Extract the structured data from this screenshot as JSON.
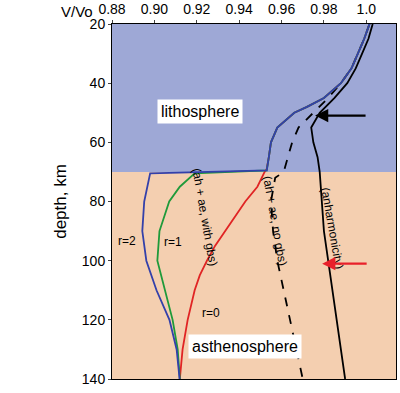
{
  "chart_data": {
    "type": "line",
    "x_label": "V/Vo",
    "y_label": "depth, km",
    "xlim": [
      0.88,
      1.014
    ],
    "ylim": [
      140,
      20
    ],
    "xticks": [
      0.88,
      {
        "value": 0.9,
        "label": "0.90"
      },
      0.92,
      0.94,
      0.96,
      0.98,
      {
        "value": 1,
        "label": "1.0"
      }
    ],
    "yticks": [
      20,
      40,
      60,
      80,
      100,
      120,
      140
    ],
    "grid": false,
    "legend": "none",
    "regions": [
      {
        "label": "lithosphere",
        "from": 20,
        "to": 70,
        "color": "#9ea8d6"
      },
      {
        "label": "asthenosphere",
        "from": 70,
        "to": 140,
        "color": "#f4cfb0"
      }
    ],
    "annotations": [
      "(ah + ae, with gbs)"
    ],
    "series": [
      {
        "name": "(anharmonicity)",
        "color": "#000000",
        "line_style": "solid",
        "y": [
          20,
          25,
          30,
          35,
          40,
          45,
          50,
          55,
          60,
          65,
          70,
          80,
          90,
          100,
          110,
          120,
          130,
          140
        ],
        "x": [
          1.003,
          1.001,
          0.998,
          0.995,
          0.991,
          0.985,
          0.978,
          0.974,
          0.975,
          0.977,
          0.978,
          0.979,
          0.98,
          0.982,
          0.984,
          0.986,
          0.988,
          0.99
        ]
      },
      {
        "name": "(ah + ae, no gbs)",
        "color": "#000000",
        "line_style": "dashed",
        "y": [
          20,
          25,
          30,
          35,
          40,
          45,
          50,
          55,
          60,
          65,
          70,
          72,
          80,
          90,
          100,
          110,
          120,
          130,
          140
        ],
        "x": [
          1.0015,
          0.999,
          0.996,
          0.993,
          0.988,
          0.982,
          0.975,
          0.968,
          0.965,
          0.963,
          0.961,
          0.957,
          0.955,
          0.956,
          0.958,
          0.961,
          0.964,
          0.967,
          0.97
        ]
      },
      {
        "name": "r=0",
        "color": "#e02424",
        "line_style": "solid",
        "y": [
          20,
          25,
          30,
          35,
          40,
          45,
          48,
          50,
          55,
          60,
          65,
          69,
          70,
          75,
          80,
          85,
          90,
          95,
          100,
          105,
          110,
          120,
          130,
          140
        ],
        "x": [
          1.0015,
          0.999,
          0.996,
          0.993,
          0.988,
          0.98,
          0.972,
          0.966,
          0.958,
          0.955,
          0.954,
          0.953,
          0.952,
          0.9486,
          0.9429,
          0.9381,
          0.9333,
          0.9286,
          0.9248,
          0.9214,
          0.919,
          0.9157,
          0.9133,
          0.912
        ]
      },
      {
        "name": "r=1",
        "color": "#1f9a3a",
        "line_style": "solid",
        "y": [
          20,
          25,
          30,
          35,
          40,
          45,
          48,
          50,
          55,
          60,
          65,
          69.5,
          70.5,
          75,
          80,
          85,
          90,
          100,
          110,
          120,
          130,
          140
        ],
        "x": [
          1.0015,
          0.999,
          0.996,
          0.993,
          0.988,
          0.98,
          0.972,
          0.966,
          0.958,
          0.955,
          0.954,
          0.953,
          0.919,
          0.912,
          0.907,
          0.9048,
          0.9024,
          0.9014,
          0.905,
          0.9086,
          0.911,
          0.912
        ]
      },
      {
        "name": "r=2",
        "color": "#3340aa",
        "line_style": "solid",
        "y": [
          20,
          25,
          30,
          35,
          40,
          45,
          48,
          50,
          55,
          60,
          65,
          69.5,
          70.5,
          72,
          80,
          90,
          100,
          110,
          120,
          130,
          140
        ],
        "x": [
          1.0015,
          0.999,
          0.996,
          0.993,
          0.988,
          0.98,
          0.972,
          0.966,
          0.958,
          0.955,
          0.954,
          0.953,
          0.898,
          0.8976,
          0.8952,
          0.8943,
          0.8962,
          0.901,
          0.9071,
          0.9105,
          0.9119
        ]
      }
    ]
  }
}
